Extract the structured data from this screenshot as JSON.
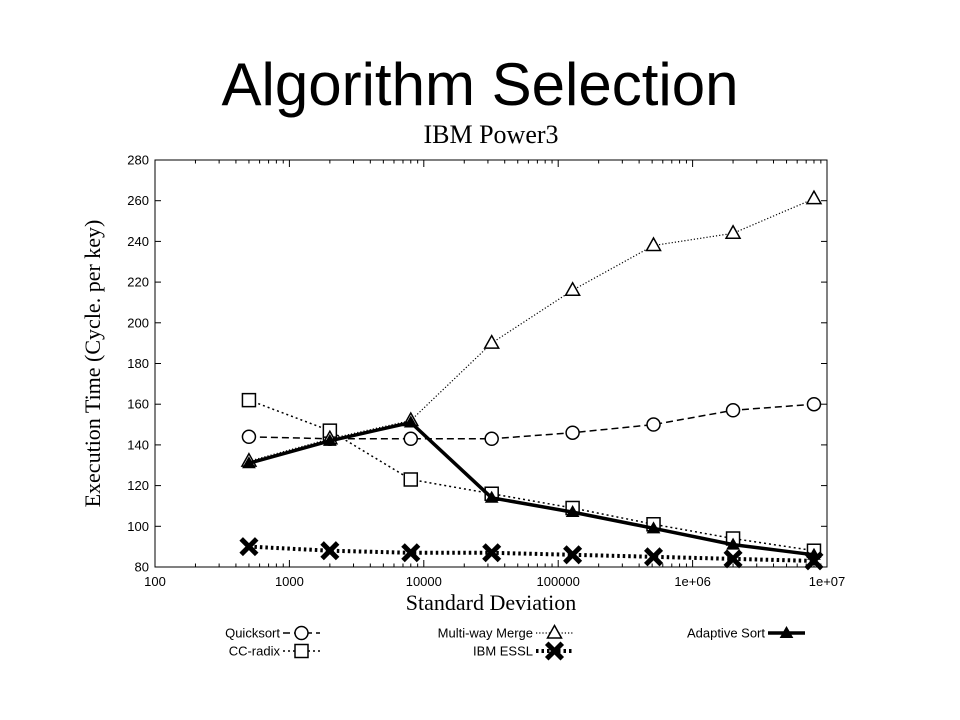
{
  "slide": {
    "title": "Algorithm Selection"
  },
  "chart_data": {
    "type": "line",
    "title": "IBM Power3",
    "xlabel": "Standard Deviation",
    "ylabel": "Execution Time (Cycle. per key)",
    "x_scale": "log",
    "xlim": [
      100,
      10000000
    ],
    "ylim": [
      80,
      280
    ],
    "x_ticks": [
      100,
      1000,
      10000,
      100000,
      1000000,
      10000000
    ],
    "x_tick_labels": [
      "100",
      "1000",
      "10000",
      "100000",
      "1e+06",
      "1e+07"
    ],
    "y_ticks": [
      80,
      100,
      120,
      140,
      160,
      180,
      200,
      220,
      240,
      260,
      280
    ],
    "x": [
      500,
      2000,
      8000,
      32000,
      128000,
      512000,
      2000000,
      8000000
    ],
    "grid": false,
    "legend_position": "bottom",
    "series": [
      {
        "name": "Quicksort",
        "values": [
          144,
          143,
          143,
          143,
          146,
          150,
          157,
          160
        ],
        "color": "#000000",
        "marker": "circle",
        "dash": "dashed",
        "width": 1.5
      },
      {
        "name": "CC-radix",
        "values": [
          162,
          147,
          123,
          116,
          109,
          101,
          94,
          88
        ],
        "color": "#000000",
        "marker": "square",
        "dash": "dotted",
        "width": 1.5
      },
      {
        "name": "Multi-way Merge",
        "values": [
          132,
          143,
          152,
          190,
          216,
          238,
          244,
          261
        ],
        "color": "#000000",
        "marker": "triangle",
        "dash": "fine-dotted",
        "width": 1.2
      },
      {
        "name": "IBM ESSL",
        "values": [
          90,
          88,
          87,
          87,
          86,
          85,
          84,
          83
        ],
        "color": "#000000",
        "marker": "x",
        "dash": "thick-dotted",
        "width": 4
      },
      {
        "name": "Adaptive Sort",
        "values": [
          131,
          142,
          151,
          114,
          107,
          99,
          91,
          86
        ],
        "color": "#000000",
        "marker": "filled-triangle",
        "dash": "solid",
        "width": 3.5
      }
    ]
  }
}
